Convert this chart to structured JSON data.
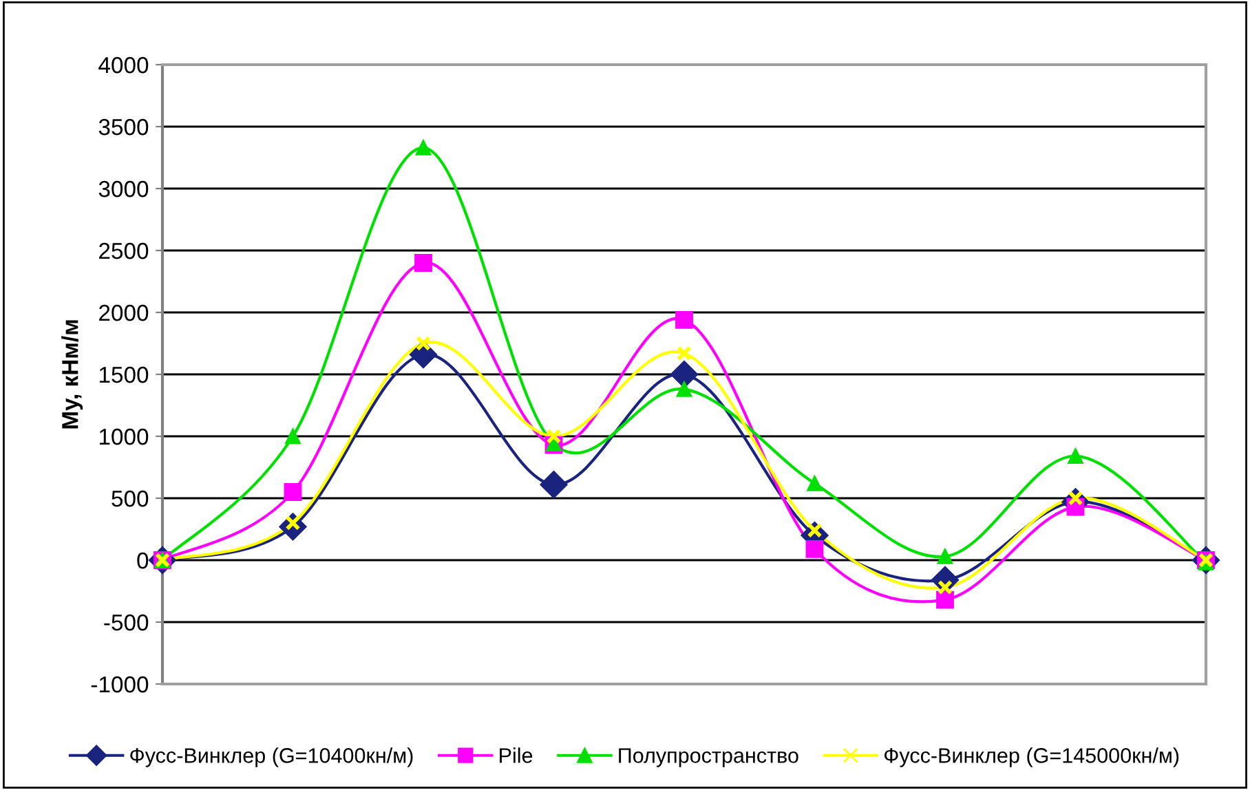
{
  "chart_data": {
    "type": "line",
    "ylabel": "My, кНм/м",
    "categories": [
      null,
      null,
      null,
      null,
      null,
      null,
      null,
      null,
      null
    ],
    "series": [
      {
        "name": "Фусс-Винклер (G=10400кн/м)",
        "color": "#1a237e",
        "marker": "diamond",
        "values": [
          0,
          270,
          1660,
          610,
          1500,
          200,
          -160,
          470,
          0
        ]
      },
      {
        "name": "Pile",
        "color": "#ff00ff",
        "marker": "square",
        "values": [
          0,
          550,
          2400,
          930,
          1940,
          90,
          -320,
          430,
          0
        ]
      },
      {
        "name": "Полупространство",
        "color": "#00e000",
        "marker": "triangle",
        "values": [
          0,
          1000,
          3330,
          940,
          1380,
          620,
          30,
          840,
          -20
        ]
      },
      {
        "name": "Фусс-Винклер (G=145000кн/м)",
        "color": "#ffff00",
        "marker": "cross",
        "values": [
          0,
          300,
          1750,
          1000,
          1670,
          240,
          -220,
          500,
          0
        ]
      }
    ],
    "ylim": [
      -1000,
      4000
    ],
    "yticks": [
      -1000,
      -500,
      0,
      500,
      1000,
      1500,
      2000,
      2500,
      3000,
      3500,
      4000
    ],
    "grid": "y",
    "legend": "bottom",
    "tick_labels": "y",
    "line_style": "solid"
  }
}
